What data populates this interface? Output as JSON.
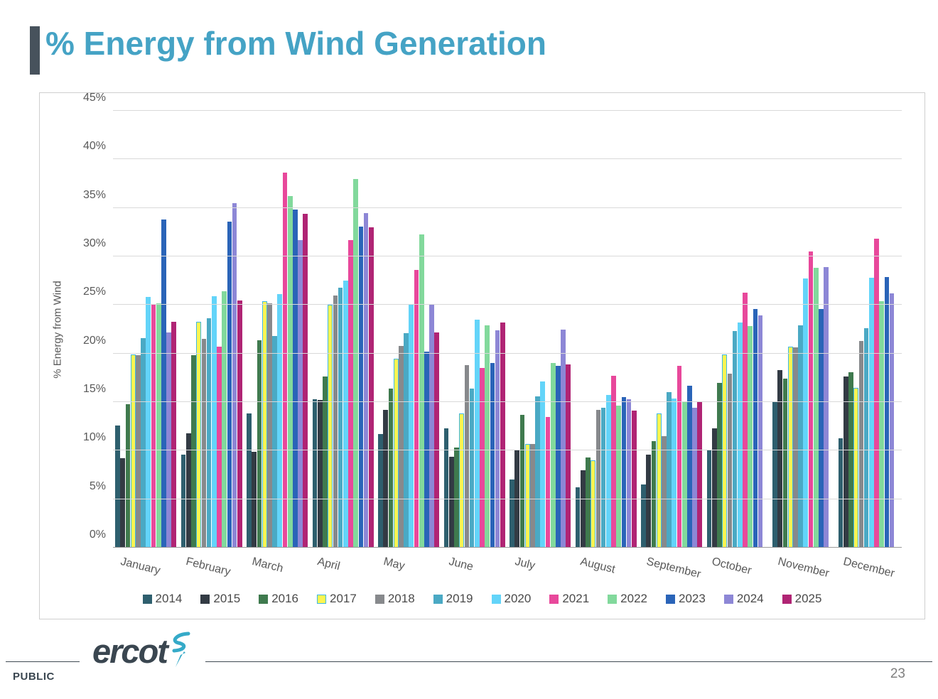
{
  "title": "% Energy from Wind Generation",
  "footer": {
    "brand": "ercot",
    "classification": "PUBLIC",
    "page_number": "23"
  },
  "chart_data": {
    "type": "bar",
    "title": "% Energy from Wind Generation",
    "ylabel": "% Energy from Wind",
    "ylim": [
      0,
      45
    ],
    "ytick_step": 5,
    "ytick_labels": [
      "0%",
      "5%",
      "10%",
      "15%",
      "20%",
      "25%",
      "30%",
      "35%",
      "40%",
      "45%"
    ],
    "grid": "horizontal",
    "legend_position": "bottom",
    "categories": [
      "January",
      "February",
      "March",
      "April",
      "May",
      "June",
      "July",
      "August",
      "September",
      "October",
      "November",
      "December"
    ],
    "series": [
      {
        "name": "2014",
        "color": "#2e5f6e",
        "values": [
          12.6,
          9.6,
          13.8,
          15.3,
          11.7,
          12.3,
          7.0,
          6.2,
          6.5,
          10.0,
          15.0,
          11.3
        ]
      },
      {
        "name": "2015",
        "color": "#333b44",
        "values": [
          9.2,
          11.8,
          9.9,
          15.2,
          14.2,
          9.4,
          10.1,
          8.0,
          9.6,
          12.3,
          18.3,
          17.6
        ]
      },
      {
        "name": "2016",
        "color": "#3f7a4e",
        "values": [
          14.8,
          19.8,
          21.4,
          17.6,
          16.4,
          10.3,
          13.7,
          9.3,
          11.0,
          17.0,
          17.4,
          18.1
        ]
      },
      {
        "name": "2017",
        "color": "#fdf451",
        "border": "#3db7e8",
        "values": [
          19.9,
          23.3,
          25.4,
          25.0,
          19.5,
          13.8,
          10.7,
          9.0,
          13.8,
          19.9,
          20.7,
          16.5
        ]
      },
      {
        "name": "2018",
        "color": "#87898c",
        "values": [
          19.8,
          21.5,
          25.2,
          26.0,
          20.8,
          18.8,
          10.7,
          14.2,
          11.5,
          17.9,
          20.6,
          21.3
        ]
      },
      {
        "name": "2019",
        "color": "#4aa9c4",
        "values": [
          21.6,
          23.6,
          21.8,
          26.8,
          22.1,
          16.4,
          15.6,
          14.4,
          16.0,
          22.3,
          22.9,
          22.6
        ]
      },
      {
        "name": "2020",
        "color": "#63d4f9",
        "values": [
          25.8,
          25.9,
          26.1,
          27.5,
          25.0,
          23.5,
          17.1,
          15.7,
          15.4,
          23.2,
          27.7,
          27.8
        ]
      },
      {
        "name": "2021",
        "color": "#e8489b",
        "values": [
          25.0,
          20.7,
          38.6,
          31.7,
          28.6,
          18.5,
          13.5,
          17.7,
          18.7,
          26.3,
          30.5,
          31.8
        ]
      },
      {
        "name": "2022",
        "color": "#82d99c",
        "values": [
          25.2,
          26.4,
          36.2,
          38.0,
          32.3,
          22.9,
          19.0,
          14.6,
          15.0,
          22.8,
          28.8,
          25.4
        ]
      },
      {
        "name": "2023",
        "color": "#2a64b8",
        "values": [
          33.8,
          33.6,
          34.8,
          33.1,
          20.2,
          19.0,
          18.7,
          15.5,
          16.7,
          24.6,
          24.6,
          27.9
        ]
      },
      {
        "name": "2024",
        "color": "#8d87d6",
        "values": [
          22.2,
          35.5,
          31.7,
          34.5,
          25.0,
          22.4,
          22.5,
          15.3,
          14.4,
          23.9,
          28.9,
          26.2
        ]
      },
      {
        "name": "2025",
        "color": "#b02474",
        "values": [
          23.3,
          25.5,
          34.4,
          33.0,
          22.2,
          23.2,
          18.9,
          14.1,
          15.1,
          null,
          null,
          null
        ]
      }
    ]
  }
}
